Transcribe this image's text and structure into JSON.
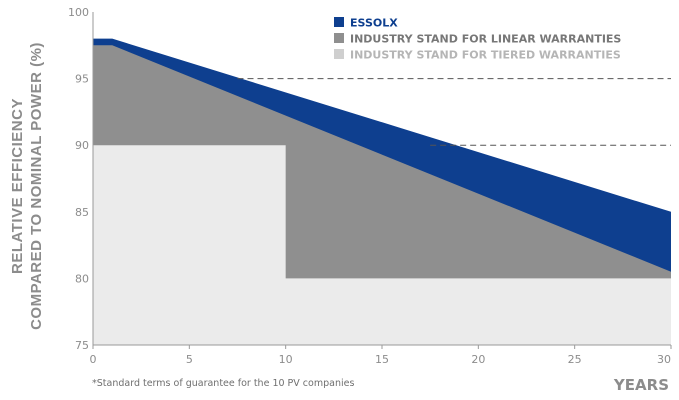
{
  "chart_data": {
    "type": "area",
    "xlabel": "YEARS",
    "ylabel_line1": "RELATIVE EFFICIENCY",
    "ylabel_line2": "COMPARED TO NOMINAL POWER (%)",
    "xlim": [
      0,
      30
    ],
    "ylim": [
      75,
      100
    ],
    "xticks": [
      0,
      5,
      10,
      15,
      20,
      25,
      30
    ],
    "yticks": [
      75,
      80,
      85,
      90,
      95,
      100
    ],
    "grid": false,
    "legend_position": "top-right",
    "footnote": "*Standard terms of guarantee for the 10 PV companies",
    "reference_lines": [
      {
        "y": 95,
        "x_from": 7.5,
        "x_to": 30,
        "style": "dashed"
      },
      {
        "y": 90,
        "x_from": 17.5,
        "x_to": 30,
        "style": "dashed"
      }
    ],
    "series": [
      {
        "name": "ESSOLX",
        "color": "#0e3f8f",
        "x": [
          0,
          1,
          30
        ],
        "y": [
          98,
          98,
          85
        ]
      },
      {
        "name": "INDUSTRY STAND FOR LINEAR WARRANTIES",
        "color": "#8f8f8f",
        "x": [
          0,
          1,
          30
        ],
        "y": [
          97.5,
          97.5,
          80.5
        ]
      },
      {
        "name": "INDUSTRY STAND FOR TIERED WARRANTIES",
        "color": "#ebebeb",
        "x": [
          0,
          10,
          10,
          30
        ],
        "y": [
          90,
          90,
          80,
          80
        ]
      }
    ]
  }
}
